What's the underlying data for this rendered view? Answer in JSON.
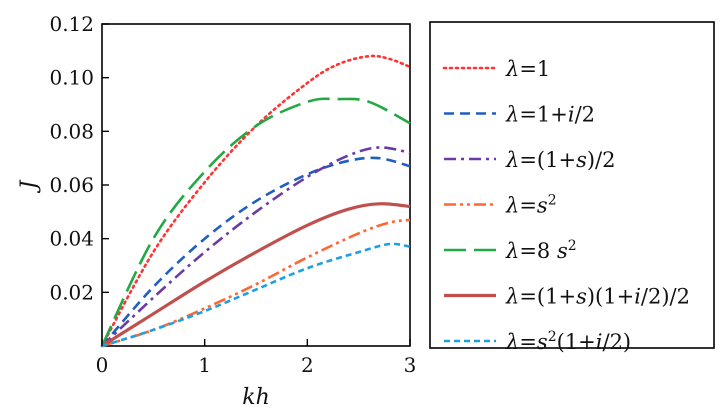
{
  "chart_data": {
    "type": "line",
    "xlabel": "kh",
    "ylabel": "J",
    "xlim": [
      0,
      3
    ],
    "ylim": [
      0,
      0.12
    ],
    "xticks": [
      0,
      1,
      2,
      3
    ],
    "xtick_labels": [
      "0",
      "1",
      "2",
      "3"
    ],
    "yticks": [
      0.02,
      0.04,
      0.06,
      0.08,
      0.1,
      0.12
    ],
    "ytick_labels": [
      "0.02",
      "0.04",
      "0.06",
      "0.08",
      "0.10",
      "0.12"
    ],
    "grid": false,
    "legend_position": "right-outside",
    "series": [
      {
        "name": "λ=1",
        "color": "#ff3333",
        "dash": "dotted",
        "x": [
          0,
          0.5,
          1,
          1.5,
          2,
          2.3,
          2.6,
          2.8,
          3
        ],
        "y": [
          0,
          0.035,
          0.061,
          0.082,
          0.098,
          0.105,
          0.108,
          0.107,
          0.104
        ]
      },
      {
        "name": "λ=1+i/2",
        "color": "#1f5fbf",
        "dash": "dashed",
        "x": [
          0,
          0.5,
          1,
          1.5,
          2,
          2.4,
          2.7,
          3
        ],
        "y": [
          0,
          0.022,
          0.04,
          0.054,
          0.064,
          0.069,
          0.07,
          0.067
        ]
      },
      {
        "name": "λ=(1+s)/2",
        "color": "#6a3aa8",
        "dash": "dashdot",
        "x": [
          0,
          0.5,
          1,
          1.5,
          2,
          2.4,
          2.7,
          3
        ],
        "y": [
          0,
          0.018,
          0.035,
          0.05,
          0.063,
          0.071,
          0.074,
          0.072
        ]
      },
      {
        "name": "λ=s²",
        "color": "#ff6633",
        "dash": "dashdotdot",
        "x": [
          0,
          0.5,
          1,
          1.5,
          2,
          2.5,
          2.8,
          3
        ],
        "y": [
          0,
          0.006,
          0.014,
          0.023,
          0.033,
          0.042,
          0.046,
          0.047
        ]
      },
      {
        "name": "λ=8 s²",
        "color": "#22a844",
        "dash": "longdash",
        "x": [
          0,
          0.5,
          1,
          1.5,
          2,
          2.3,
          2.6,
          3
        ],
        "y": [
          0,
          0.04,
          0.065,
          0.082,
          0.091,
          0.092,
          0.091,
          0.083
        ]
      },
      {
        "name": "λ=(1+s)(1+i/2)/2",
        "color": "#c0504d",
        "dash": "solid",
        "x": [
          0,
          0.5,
          1,
          1.5,
          2,
          2.4,
          2.7,
          3
        ],
        "y": [
          0,
          0.012,
          0.024,
          0.035,
          0.045,
          0.051,
          0.053,
          0.052
        ]
      },
      {
        "name": "λ=s²(1+i/2)",
        "color": "#1ca0e0",
        "dash": "shortdash",
        "x": [
          0,
          0.5,
          1,
          1.5,
          2,
          2.5,
          2.8,
          3
        ],
        "y": [
          0,
          0.006,
          0.013,
          0.021,
          0.029,
          0.035,
          0.038,
          0.037
        ]
      }
    ],
    "legend": [
      {
        "prefix": "λ",
        "body": "=1",
        "sup": "",
        "tail": ""
      },
      {
        "prefix": "λ",
        "body": "=1+",
        "ital": "i",
        "tail": "/2",
        "sup": ""
      },
      {
        "prefix": "λ",
        "body": "=(1+",
        "ital": "s",
        "tail": ")/2",
        "sup": ""
      },
      {
        "prefix": "λ",
        "body": "=",
        "ital": "s",
        "sup": "2",
        "tail": ""
      },
      {
        "prefix": "λ",
        "body": "=8 ",
        "ital": "s",
        "sup": "2",
        "tail": ""
      },
      {
        "prefix": "λ",
        "body": "=(1+",
        "ital": "s",
        "tail": ")(1+",
        "ital2": "i",
        "tail2": "/2)/2",
        "sup": ""
      },
      {
        "prefix": "λ",
        "body": "=",
        "ital": "s",
        "sup": "2",
        "tail": "(1+",
        "ital2": "i",
        "tail2": "/2)"
      }
    ]
  }
}
